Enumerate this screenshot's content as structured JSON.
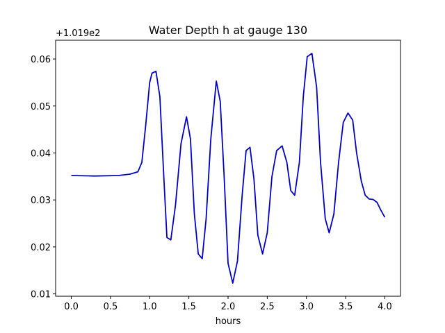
{
  "chart_data": {
    "type": "line",
    "title": "Water Depth h at gauge 130",
    "xlabel": "hours",
    "ylabel": "",
    "offset_label": "+1.019e2",
    "xlim": [
      -0.2,
      4.2
    ],
    "ylim": [
      0.0095,
      0.064
    ],
    "xticks": [
      0.0,
      0.5,
      1.0,
      1.5,
      2.0,
      2.5,
      3.0,
      3.5,
      4.0
    ],
    "xtick_labels": [
      "0.0",
      "0.5",
      "1.0",
      "1.5",
      "2.0",
      "2.5",
      "3.0",
      "3.5",
      "4.0"
    ],
    "yticks": [
      0.01,
      0.02,
      0.03,
      0.04,
      0.05,
      0.06
    ],
    "ytick_labels": [
      "0.01",
      "0.02",
      "0.03",
      "0.04",
      "0.05",
      "0.06"
    ],
    "grid": false,
    "line_color": "#0000cc",
    "series": [
      {
        "x": [
          0.0,
          0.3,
          0.6,
          0.75,
          0.85,
          0.9,
          0.95,
          1.0,
          1.03,
          1.08,
          1.13,
          1.18,
          1.22,
          1.27,
          1.33,
          1.4,
          1.47,
          1.52,
          1.57,
          1.62,
          1.67,
          1.72,
          1.78,
          1.85,
          1.9,
          1.95,
          2.0,
          2.06,
          2.12,
          2.18,
          2.23,
          2.28,
          2.33,
          2.38,
          2.44,
          2.5,
          2.56,
          2.62,
          2.69,
          2.75,
          2.8,
          2.85,
          2.91,
          2.96,
          3.01,
          3.07,
          3.13,
          3.18,
          3.24,
          3.29,
          3.35,
          3.41,
          3.47,
          3.53,
          3.59,
          3.64,
          3.7,
          3.75,
          3.8,
          3.85,
          3.9,
          3.95,
          4.0
        ],
        "y": [
          0.0352,
          0.0351,
          0.0352,
          0.0355,
          0.036,
          0.038,
          0.046,
          0.055,
          0.057,
          0.0574,
          0.052,
          0.035,
          0.022,
          0.0215,
          0.029,
          0.042,
          0.0477,
          0.043,
          0.027,
          0.0185,
          0.0175,
          0.026,
          0.043,
          0.0553,
          0.051,
          0.035,
          0.0165,
          0.0123,
          0.017,
          0.031,
          0.0405,
          0.0412,
          0.0345,
          0.0225,
          0.0185,
          0.023,
          0.035,
          0.0405,
          0.0415,
          0.038,
          0.032,
          0.031,
          0.038,
          0.052,
          0.0605,
          0.0612,
          0.054,
          0.038,
          0.026,
          0.023,
          0.027,
          0.038,
          0.0465,
          0.0485,
          0.047,
          0.04,
          0.034,
          0.031,
          0.0302,
          0.0301,
          0.0295,
          0.0278,
          0.0263
        ]
      }
    ]
  }
}
